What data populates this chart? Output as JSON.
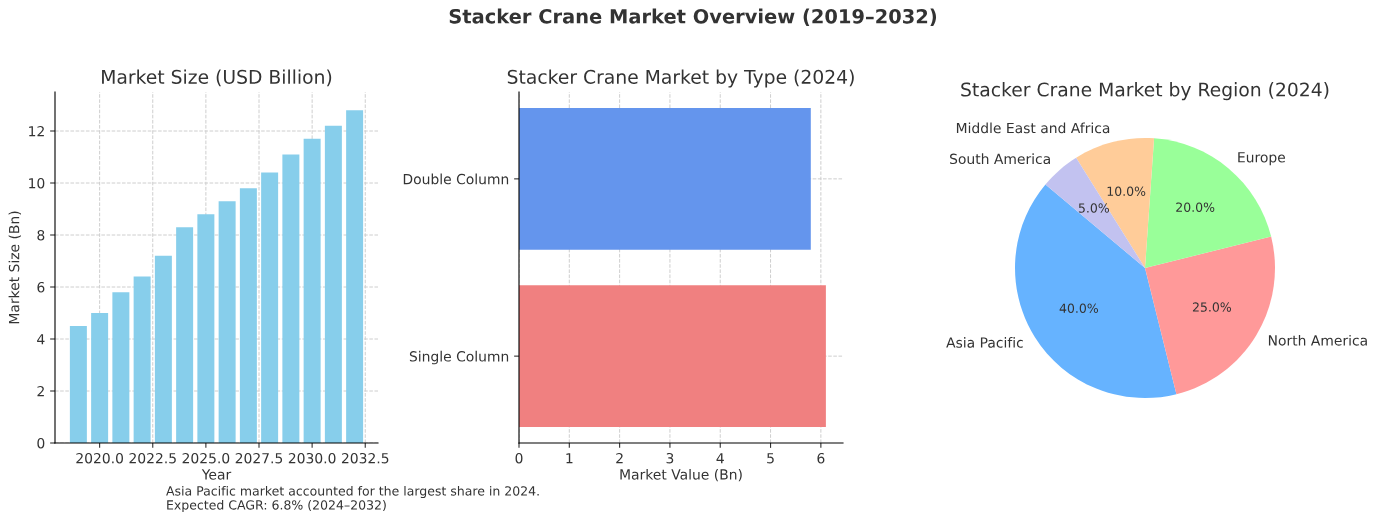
{
  "chart_data": [
    {
      "type": "other",
      "title": "Stacker Crane Market Overview (2019–2032)",
      "annotations": [
        "Asia Pacific market accounted for the largest share in 2024.",
        "Expected CAGR: 6.8% (2024–2032)"
      ]
    },
    {
      "type": "bar",
      "title": "Market Size (USD Billion)",
      "xlabel": "Year",
      "ylabel": "Market Size (Bn)",
      "x": [
        2019,
        2020,
        2021,
        2022,
        2023,
        2024,
        2025,
        2026,
        2027,
        2028,
        2029,
        2030,
        2031,
        2032
      ],
      "values": [
        4.5,
        5.0,
        5.8,
        6.4,
        7.2,
        8.3,
        8.8,
        9.3,
        9.8,
        10.4,
        11.1,
        11.7,
        12.2,
        12.8
      ],
      "color": "#87ceeb",
      "xlim": [
        2017.9,
        2033.1
      ],
      "xticks": [
        {
          "value": 2020,
          "label": "2020.0"
        },
        {
          "value": 2022.5,
          "label": "2022.5"
        },
        {
          "value": 2025,
          "label": "2025.0"
        },
        {
          "value": 2027.5,
          "label": "2027.5"
        },
        {
          "value": 2030,
          "label": "2030.0"
        },
        {
          "value": 2032.5,
          "label": "2032.5"
        }
      ],
      "ylim": [
        0,
        13.5
      ],
      "yticks": [
        0,
        2,
        4,
        6,
        8,
        10,
        12
      ],
      "grid": true
    },
    {
      "type": "bar",
      "orientation": "horizontal",
      "title": "Stacker Crane Market by Type (2024)",
      "xlabel": "Market Value (Bn)",
      "categories": [
        "Double Column",
        "Single Column"
      ],
      "values": [
        5.8,
        6.1
      ],
      "colors": [
        "#6495ed",
        "#f08080"
      ],
      "xlim": [
        0,
        6.44
      ],
      "xticks": [
        0,
        1,
        2,
        3,
        4,
        5,
        6
      ],
      "grid": true
    },
    {
      "type": "pie",
      "title": "Stacker Crane Market by Region (2024)",
      "categories": [
        "Asia Pacific",
        "North America",
        "Europe",
        "Middle East and Africa",
        "South America"
      ],
      "values": [
        40,
        25,
        20,
        10,
        5
      ],
      "value_labels": [
        "40.0%",
        "25.0%",
        "20.0%",
        "10.0%",
        "5.0%"
      ],
      "colors": [
        "#66b3ff",
        "#ff9999",
        "#99ff99",
        "#ffcc99",
        "#c2c2f0"
      ]
    }
  ]
}
